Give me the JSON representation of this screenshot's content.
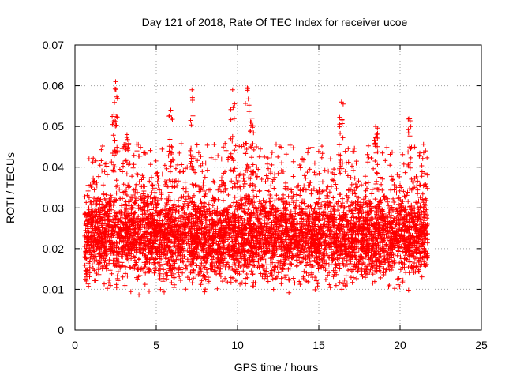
{
  "chart_data": {
    "type": "scatter",
    "title": "Day 121 of 2018, Rate Of TEC Index for receiver ucoe",
    "xlabel": "GPS time / hours",
    "ylabel": "ROTI / TECUs",
    "xlim": [
      0,
      25
    ],
    "ylim": [
      0,
      0.07
    ],
    "x_ticks": [
      "0",
      "5",
      "10",
      "15",
      "20",
      "25"
    ],
    "y_ticks": [
      "0",
      "0.01",
      "0.02",
      "0.03",
      "0.04",
      "0.05",
      "0.06",
      "0.07"
    ],
    "grid": true,
    "marker": "+",
    "series": [
      {
        "color": "#ff0000",
        "x_range": [
          0.6,
          21.7
        ],
        "typical_y_range": [
          0.005,
          0.04
        ],
        "spikes": [
          {
            "x": 2.5,
            "y": 0.061
          },
          {
            "x": 2.4,
            "y": 0.053
          },
          {
            "x": 3.2,
            "y": 0.048
          },
          {
            "x": 5.9,
            "y": 0.054
          },
          {
            "x": 7.2,
            "y": 0.059
          },
          {
            "x": 9.7,
            "y": 0.059
          },
          {
            "x": 10.6,
            "y": 0.0595
          },
          {
            "x": 10.9,
            "y": 0.052
          },
          {
            "x": 16.4,
            "y": 0.056
          },
          {
            "x": 18.5,
            "y": 0.05
          },
          {
            "x": 20.6,
            "y": 0.052
          }
        ]
      }
    ]
  }
}
